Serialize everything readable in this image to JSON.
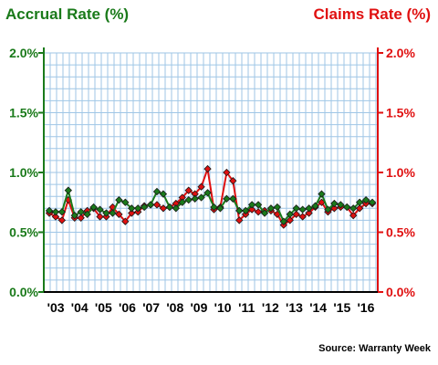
{
  "chart_data": {
    "type": "line",
    "title_left": "Accrual Rate (%)",
    "title_right": "Claims Rate (%)",
    "source": "Source: Warranty Week",
    "x_labels": [
      "'03",
      "'04",
      "'05",
      "'06",
      "'07",
      "'08",
      "'09",
      "'10",
      "'11",
      "'12",
      "'13",
      "'14",
      "'15",
      "'16"
    ],
    "y_left_ticks": [
      "0.0%",
      "0.5%",
      "1.0%",
      "1.5%",
      "2.0%"
    ],
    "y_right_ticks": [
      "0.0%",
      "0.5%",
      "1.0%",
      "1.5%",
      "2.0%"
    ],
    "ylim": [
      0,
      2.0
    ],
    "grid": true,
    "series": [
      {
        "name": "Accrual Rate (%)",
        "color": "#1a7a1a",
        "axis": "left",
        "values": [
          0.68,
          0.67,
          0.67,
          0.85,
          0.64,
          0.67,
          0.65,
          0.71,
          0.69,
          0.66,
          0.66,
          0.77,
          0.75,
          0.7,
          0.7,
          0.71,
          0.73,
          0.84,
          0.82,
          0.71,
          0.7,
          0.75,
          0.77,
          0.78,
          0.79,
          0.83,
          0.71,
          0.7,
          0.78,
          0.78,
          0.68,
          0.68,
          0.73,
          0.73,
          0.66,
          0.7,
          0.71,
          0.59,
          0.65,
          0.7,
          0.69,
          0.7,
          0.72,
          0.82,
          0.69,
          0.74,
          0.73,
          0.71,
          0.7,
          0.75,
          0.77,
          0.75
        ]
      },
      {
        "name": "Claims Rate (%)",
        "color": "#e01010",
        "axis": "right",
        "values": [
          0.66,
          0.63,
          0.6,
          0.77,
          0.62,
          0.62,
          0.68,
          0.7,
          0.63,
          0.63,
          0.71,
          0.65,
          0.59,
          0.66,
          0.67,
          0.72,
          0.73,
          0.73,
          0.7,
          0.71,
          0.74,
          0.79,
          0.85,
          0.82,
          0.88,
          1.03,
          0.69,
          0.71,
          1.0,
          0.93,
          0.6,
          0.65,
          0.69,
          0.67,
          0.68,
          0.68,
          0.65,
          0.56,
          0.6,
          0.65,
          0.63,
          0.66,
          0.71,
          0.75,
          0.67,
          0.7,
          0.71,
          0.71,
          0.64,
          0.7,
          0.74,
          0.74
        ]
      }
    ]
  }
}
